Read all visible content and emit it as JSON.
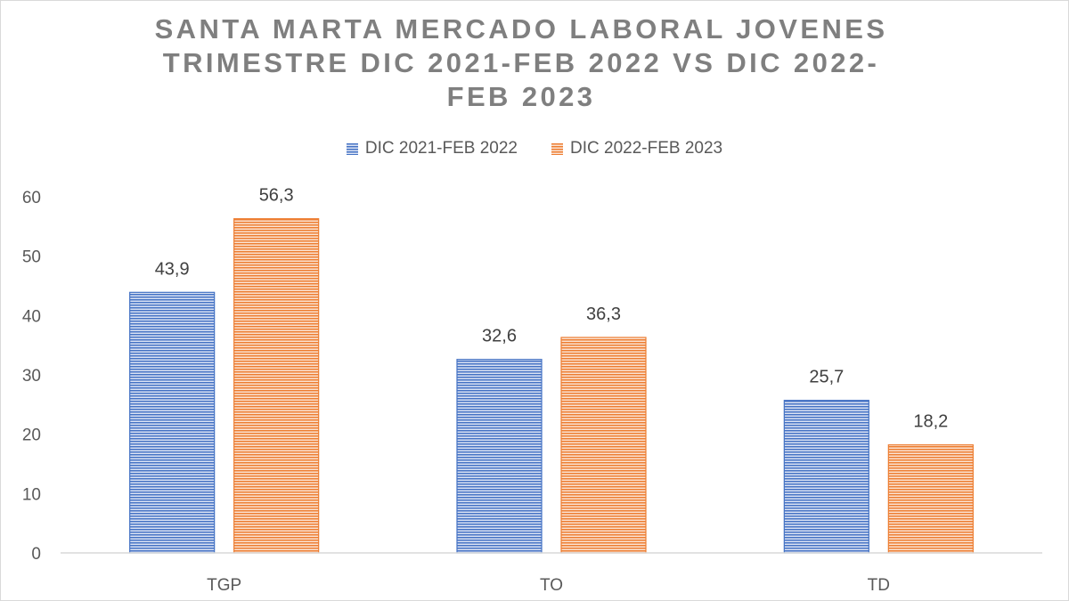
{
  "chart_data": {
    "type": "bar",
    "title_lines": [
      "SANTA MARTA MERCADO LABORAL  JOVENES",
      "TRIMESTRE DIC 2021-FEB 2022 VS DIC 2022-",
      "FEB 2023"
    ],
    "categories": [
      "TGP",
      "TO",
      "TD"
    ],
    "series": [
      {
        "name": "DIC 2021-FEB 2022",
        "values": [
          43.9,
          32.6,
          25.7
        ],
        "labels": [
          "43,9",
          "32,6",
          "25,7"
        ],
        "color": "#4472c4"
      },
      {
        "name": "DIC 2022-FEB 2023",
        "values": [
          56.3,
          36.3,
          18.2
        ],
        "labels": [
          "56,3",
          "36,3",
          "18,2"
        ],
        "color": "#ed7d31"
      }
    ],
    "ylim": [
      0,
      60
    ],
    "yticks": [
      0,
      10,
      20,
      30,
      40,
      50,
      60
    ],
    "grid": false,
    "legend_position": "top"
  }
}
